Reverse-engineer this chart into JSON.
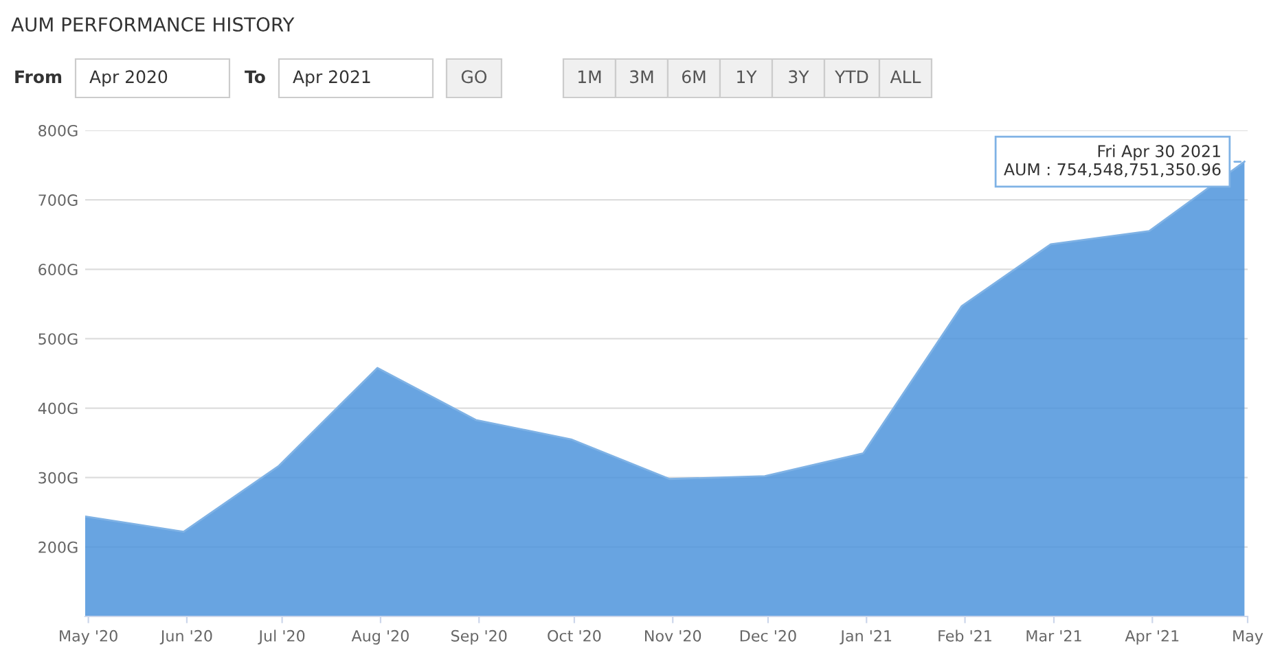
{
  "chart_data": {
    "type": "area",
    "title": "AUM PERFORMANCE HISTORY",
    "annotations": [
      "From",
      "Apr 2020",
      "To",
      "Apr 2021",
      "GO",
      "1M",
      "3M",
      "6M",
      "1Y",
      "3Y",
      "YTD",
      "ALL",
      {
        "text": "Fri Apr 30 2021\nAUM : 754,548,751,350.96",
        "x": "2021-04-30",
        "y": 755
      }
    ],
    "x": [
      "2020-04-30",
      "2020-05-31",
      "2020-06-30",
      "2020-07-31",
      "2020-08-31",
      "2020-09-30",
      "2020-10-31",
      "2020-11-30",
      "2020-12-31",
      "2021-01-31",
      "2021-02-28",
      "2021-03-31",
      "2021-04-30"
    ],
    "series": [
      {
        "color": "#4d94dc",
        "values": [
          244,
          222,
          317,
          458,
          383,
          355,
          298,
          302,
          335,
          547,
          636,
          655,
          755
        ]
      }
    ],
    "ylim": [
      100,
      800
    ],
    "yticks": [
      {
        "value": 100,
        "label": null
      },
      {
        "value": 200,
        "label": "200G"
      },
      {
        "value": 300,
        "label": "300G"
      },
      {
        "value": 400,
        "label": "400G"
      },
      {
        "value": 500,
        "label": "500G"
      },
      {
        "value": 600,
        "label": "600G"
      },
      {
        "value": 700,
        "label": "700G"
      },
      {
        "value": 800,
        "label": "800G"
      }
    ],
    "xlim": [
      "2020-04-30",
      "2021-05-01"
    ],
    "xticks": [
      {
        "value": "2020-05-01",
        "label": "May '20"
      },
      {
        "value": "2020-06-01",
        "label": "Jun '20"
      },
      {
        "value": "2020-07-01",
        "label": "Jul '20"
      },
      {
        "value": "2020-08-01",
        "label": "Aug '20"
      },
      {
        "value": "2020-09-01",
        "label": "Sep '20"
      },
      {
        "value": "2020-10-01",
        "label": "Oct '20"
      },
      {
        "value": "2020-11-01",
        "label": "Nov '20"
      },
      {
        "value": "2020-12-01",
        "label": "Dec '20"
      },
      {
        "value": "2021-01-01",
        "label": "Jan '21"
      },
      {
        "value": "2021-02-01",
        "label": "Feb '21"
      },
      {
        "value": "2021-03-01",
        "label": "Mar '21"
      },
      {
        "value": "2021-04-01",
        "label": "Apr '21"
      },
      {
        "value": "2021-05-01",
        "label": "May"
      }
    ],
    "grid": "y",
    "legend": false
  }
}
